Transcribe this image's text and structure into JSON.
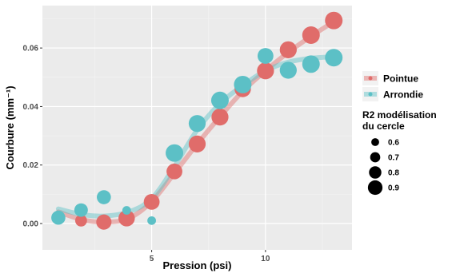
{
  "chart_data": {
    "type": "scatter",
    "xlabel": "Pression (psi)",
    "ylabel": "Courbure (mm⁻¹)",
    "xlim": [
      0.2,
      13.8
    ],
    "ylim": [
      -0.009,
      0.0745
    ],
    "x_ticks": [
      5,
      10
    ],
    "y_ticks": [
      0.0,
      0.02,
      0.04,
      0.06
    ],
    "y_tick_labels": [
      "0.00",
      "0.02",
      "0.04",
      "0.06"
    ],
    "grid": true,
    "series": [
      {
        "name": "Pointue",
        "color": "#E06C6A",
        "points": [
          {
            "x": 0.9,
            "y": 0.0022,
            "r2": 0.62
          },
          {
            "x": 1.9,
            "y": 0.001,
            "r2": 0.66
          },
          {
            "x": 2.9,
            "y": 0.0005,
            "r2": 0.78
          },
          {
            "x": 3.9,
            "y": 0.0018,
            "r2": 0.82
          },
          {
            "x": 5.0,
            "y": 0.0074,
            "r2": 0.8
          },
          {
            "x": 6.0,
            "y": 0.0178,
            "r2": 0.8
          },
          {
            "x": 7.0,
            "y": 0.0272,
            "r2": 0.84
          },
          {
            "x": 8.0,
            "y": 0.0364,
            "r2": 0.84
          },
          {
            "x": 9.0,
            "y": 0.046,
            "r2": 0.82
          },
          {
            "x": 10.0,
            "y": 0.0522,
            "r2": 0.84
          },
          {
            "x": 11.0,
            "y": 0.0594,
            "r2": 0.84
          },
          {
            "x": 12.0,
            "y": 0.0644,
            "r2": 0.86
          },
          {
            "x": 13.0,
            "y": 0.0694,
            "r2": 0.86
          }
        ],
        "trend": [
          [
            0.9,
            0.004
          ],
          [
            2.0,
            0.0012
          ],
          [
            3.0,
            0.0005
          ],
          [
            4.0,
            0.0018
          ],
          [
            5.0,
            0.0075
          ],
          [
            6.0,
            0.0172
          ],
          [
            7.0,
            0.0272
          ],
          [
            8.0,
            0.0365
          ],
          [
            9.0,
            0.0452
          ],
          [
            10.0,
            0.0522
          ],
          [
            11.0,
            0.0585
          ],
          [
            12.0,
            0.064
          ],
          [
            13.0,
            0.069
          ]
        ]
      },
      {
        "name": "Arrondie",
        "color": "#5CC0C6",
        "points": [
          {
            "x": 0.9,
            "y": 0.002,
            "r2": 0.74
          },
          {
            "x": 1.9,
            "y": 0.0046,
            "r2": 0.72
          },
          {
            "x": 2.9,
            "y": 0.009,
            "r2": 0.74
          },
          {
            "x": 3.9,
            "y": 0.0045,
            "r2": 0.55
          },
          {
            "x": 5.0,
            "y": 0.001,
            "r2": 0.55
          },
          {
            "x": 6.0,
            "y": 0.0241,
            "r2": 0.86
          },
          {
            "x": 7.0,
            "y": 0.0342,
            "r2": 0.84
          },
          {
            "x": 8.0,
            "y": 0.0421,
            "r2": 0.86
          },
          {
            "x": 9.0,
            "y": 0.0475,
            "r2": 0.86
          },
          {
            "x": 10.0,
            "y": 0.0573,
            "r2": 0.8
          },
          {
            "x": 11.0,
            "y": 0.0524,
            "r2": 0.84
          },
          {
            "x": 12.0,
            "y": 0.0545,
            "r2": 0.86
          },
          {
            "x": 13.0,
            "y": 0.0567,
            "r2": 0.86
          }
        ],
        "trend": [
          [
            0.9,
            0.005
          ],
          [
            2.0,
            0.003
          ],
          [
            3.0,
            0.0026
          ],
          [
            4.0,
            0.004
          ],
          [
            5.0,
            0.0085
          ],
          [
            6.0,
            0.0195
          ],
          [
            7.0,
            0.032
          ],
          [
            8.0,
            0.041
          ],
          [
            9.0,
            0.0472
          ],
          [
            10.0,
            0.0522
          ],
          [
            11.0,
            0.0552
          ],
          [
            12.0,
            0.0565
          ],
          [
            13.0,
            0.057
          ]
        ]
      }
    ],
    "legend_color": {
      "items": [
        "Pointue",
        "Arrondie"
      ]
    },
    "legend_size": {
      "title_line1": "R2 modélisation",
      "title_line2": "du cercle",
      "values": [
        0.6,
        0.7,
        0.8,
        0.9
      ],
      "labels": [
        "0.6",
        "0.7",
        "0.8",
        "0.9"
      ]
    }
  }
}
